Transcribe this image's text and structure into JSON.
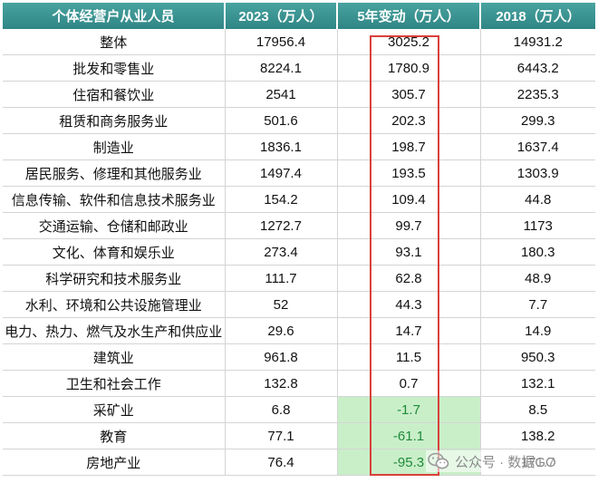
{
  "table": {
    "headers": [
      "个体经营户从业人员",
      "2023（万人）",
      "5年变动（万人）",
      "2018（万人）"
    ],
    "rows": [
      {
        "name": "整体",
        "y2023": "17956.4",
        "change": "3025.2",
        "y2018": "14931.2"
      },
      {
        "name": "批发和零售业",
        "y2023": "8224.1",
        "change": "1780.9",
        "y2018": "6443.2"
      },
      {
        "name": "住宿和餐饮业",
        "y2023": "2541",
        "change": "305.7",
        "y2018": "2235.3"
      },
      {
        "name": "租赁和商务服务业",
        "y2023": "501.6",
        "change": "202.3",
        "y2018": "299.3"
      },
      {
        "name": "制造业",
        "y2023": "1836.1",
        "change": "198.7",
        "y2018": "1637.4"
      },
      {
        "name": "居民服务、修理和其他服务业",
        "y2023": "1497.4",
        "change": "193.5",
        "y2018": "1303.9"
      },
      {
        "name": "信息传输、软件和信息技术服务业",
        "y2023": "154.2",
        "change": "109.4",
        "y2018": "44.8"
      },
      {
        "name": "交通运输、仓储和邮政业",
        "y2023": "1272.7",
        "change": "99.7",
        "y2018": "1173"
      },
      {
        "name": "文化、体育和娱乐业",
        "y2023": "273.4",
        "change": "93.1",
        "y2018": "180.3"
      },
      {
        "name": "科学研究和技术服务业",
        "y2023": "111.7",
        "change": "62.8",
        "y2018": "48.9"
      },
      {
        "name": "水利、环境和公共设施管理业",
        "y2023": "52",
        "change": "44.3",
        "y2018": "7.7"
      },
      {
        "name": "电力、热力、燃气及水生产和供应业",
        "y2023": "29.6",
        "change": "14.7",
        "y2018": "14.9"
      },
      {
        "name": "建筑业",
        "y2023": "961.8",
        "change": "11.5",
        "y2018": "950.3"
      },
      {
        "name": "卫生和社会工作",
        "y2023": "132.8",
        "change": "0.7",
        "y2018": "132.1"
      },
      {
        "name": "采矿业",
        "y2023": "6.8",
        "change": "-1.7",
        "y2018": "8.5"
      },
      {
        "name": "教育",
        "y2023": "77.1",
        "change": "-61.1",
        "y2018": "138.2"
      },
      {
        "name": "房地产业",
        "y2023": "76.4",
        "change": "-95.3",
        "y2018": "171.7"
      }
    ]
  },
  "colors": {
    "header_bg": "#3a8f8f",
    "negative_bg": "#c9efc9",
    "negative_text": "#1f8a3b",
    "highlight_border": "#d9403a"
  },
  "watermark": {
    "icon": "wechat-icon",
    "text": "公众号 · 数据GO"
  }
}
